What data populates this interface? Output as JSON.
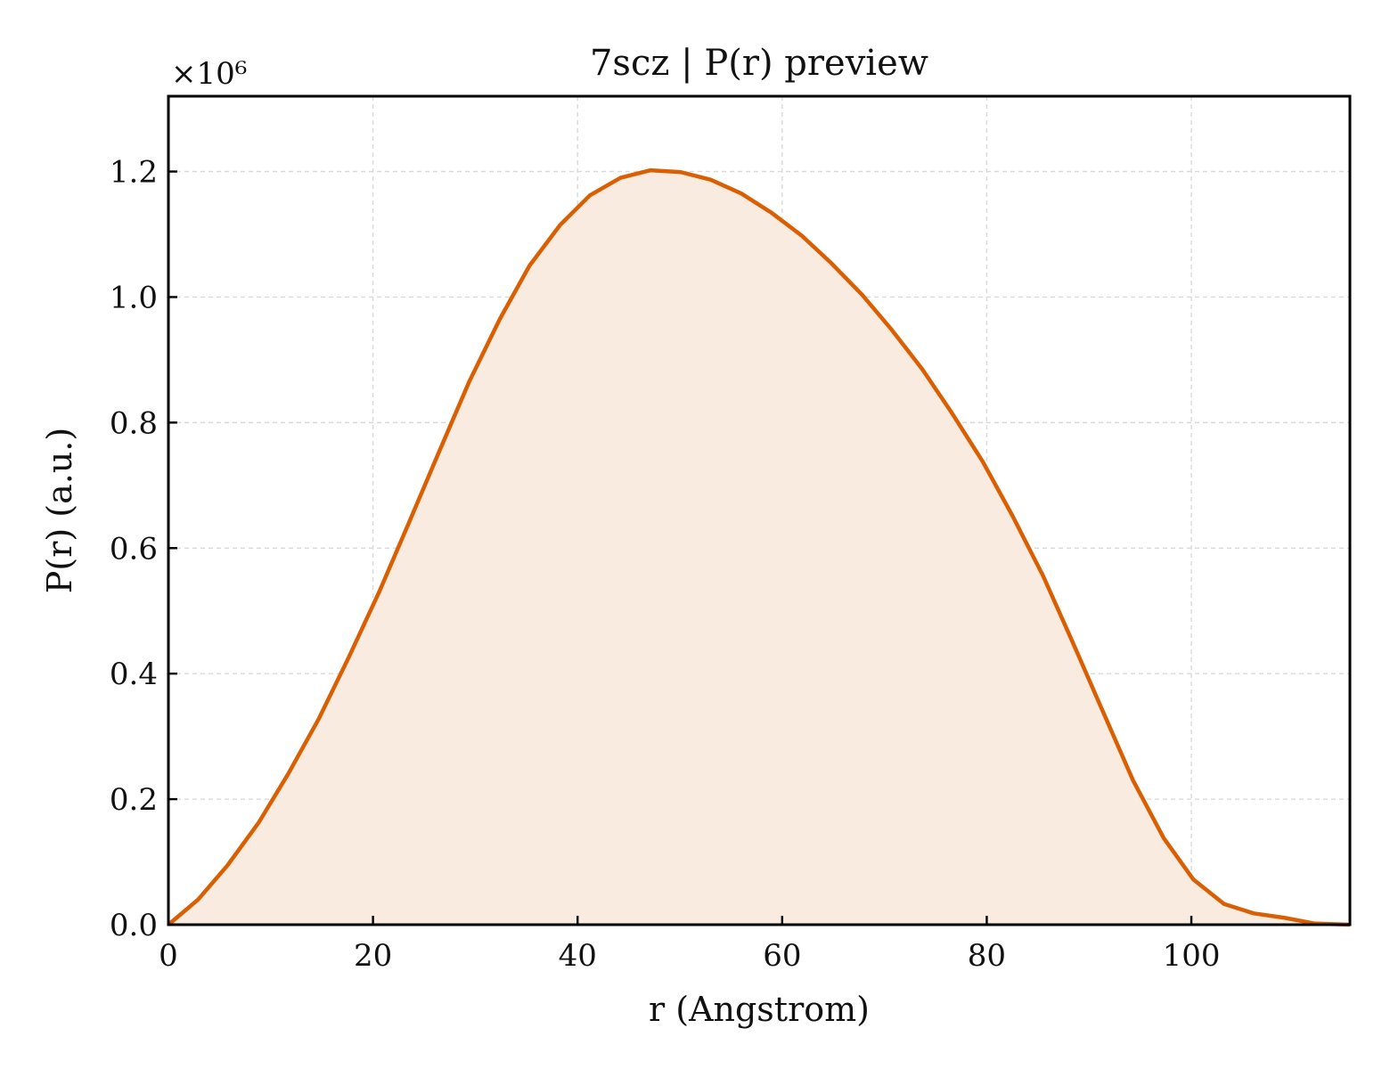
{
  "chart_data": {
    "type": "area",
    "title": "7scz | P(r) preview",
    "xlabel": "r (Angstrom)",
    "ylabel": "P(r) (a.u.)",
    "y_multiplier_label": "×10⁶",
    "xlim": [
      0,
      115.5
    ],
    "ylim": [
      0,
      1.32
    ],
    "xticks": [
      0,
      20,
      40,
      60,
      80,
      100
    ],
    "xtick_labels": [
      "0",
      "20",
      "40",
      "60",
      "80",
      "100"
    ],
    "yticks": [
      0.0,
      0.2,
      0.4,
      0.6,
      0.8,
      1.0,
      1.2
    ],
    "ytick_labels": [
      "0.0",
      "0.2",
      "0.4",
      "0.6",
      "0.8",
      "1.0",
      "1.2"
    ],
    "grid": true,
    "line_color": "#d95f02",
    "fill_color": "#f9ebe0",
    "series": [
      {
        "x": [
          0,
          2.9,
          5.8,
          8.8,
          11.7,
          14.7,
          17.6,
          20.6,
          23.5,
          26.5,
          29.4,
          32.4,
          35.3,
          38.3,
          41.2,
          44.2,
          47.1,
          50.1,
          53.0,
          56.0,
          58.9,
          61.9,
          64.8,
          67.8,
          70.7,
          73.7,
          76.6,
          79.6,
          82.5,
          85.5,
          88.4,
          91.4,
          94.3,
          97.3,
          100.2,
          103.2,
          106.1,
          109.1,
          112.0,
          115.5
        ],
        "y": [
          0.0,
          0.04,
          0.095,
          0.162,
          0.24,
          0.328,
          0.425,
          0.53,
          0.64,
          0.755,
          0.865,
          0.965,
          1.05,
          1.115,
          1.162,
          1.19,
          1.202,
          1.199,
          1.187,
          1.165,
          1.135,
          1.098,
          1.054,
          1.004,
          0.948,
          0.885,
          0.815,
          0.738,
          0.652,
          0.556,
          0.45,
          0.338,
          0.23,
          0.138,
          0.072,
          0.033,
          0.018,
          0.011,
          0.002,
          0.0
        ]
      }
    ]
  }
}
